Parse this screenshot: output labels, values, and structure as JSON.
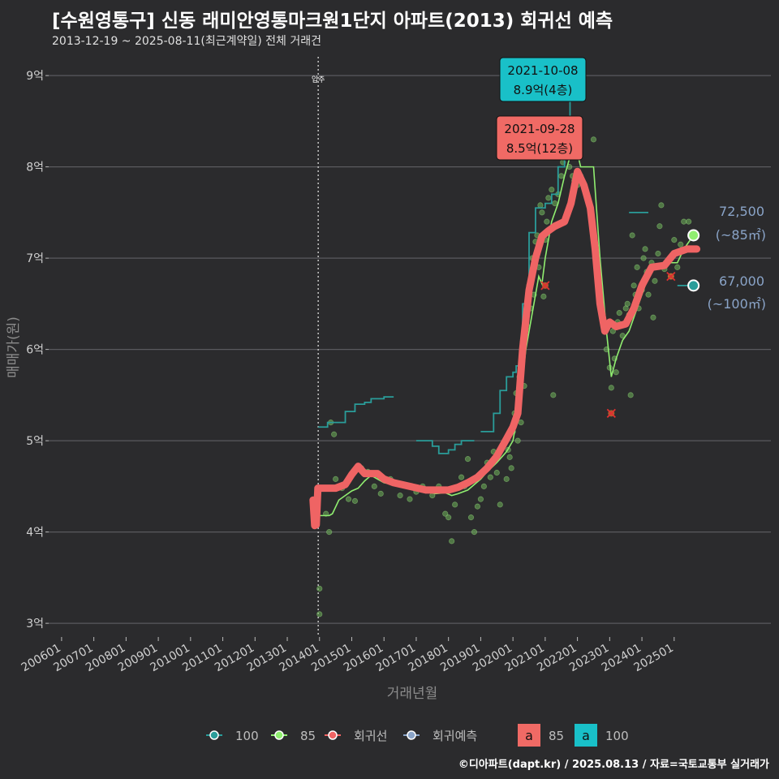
{
  "header": {
    "title": "[수원영통구] 신동 래미안영통마크원1단지 아파트(2013) 회귀선 예측",
    "subtitle": "2013-12-19 ~ 2025-08-11(최근계약일) 전체 거래건"
  },
  "footer": {
    "credit": "©디아파트(dapt.kr) / 2025.08.13 / 자료=국토교통부 실거래가"
  },
  "colors": {
    "bg": "#2b2b2d",
    "grid": "#5a5a5e",
    "axis_text": "#cfcfcf",
    "axis_title": "#8c8c8c",
    "s100": "#2a9d9a",
    "s85": "#90ee70",
    "regression": "#ef6464",
    "forecast": "#8aa4c8",
    "label85_bg": "#f06a65",
    "label100_bg": "#19c0c8"
  },
  "chart_data": {
    "type": "line",
    "xlabel": "거래년월",
    "ylabel": "매매가(원)",
    "x_ticks": [
      "200601",
      "200701",
      "200801",
      "200901",
      "201001",
      "201101",
      "201201",
      "201301",
      "201401",
      "201501",
      "201601",
      "201701",
      "201801",
      "201901",
      "202001",
      "202101",
      "202201",
      "202301",
      "202401",
      "202501"
    ],
    "y_ticks": [
      "3억",
      "4억",
      "5억",
      "6억",
      "7억",
      "8억",
      "9억"
    ],
    "xlim": [
      2005.6,
      2028.0
    ],
    "ylim": [
      28500,
      92500
    ],
    "move_in": {
      "x": 2013.96,
      "label": "입주"
    },
    "series": [
      {
        "name": "100",
        "kind": "step",
        "points": [
          [
            2013.96,
            51500
          ],
          [
            2014.25,
            52000
          ],
          [
            2014.6,
            52000
          ],
          [
            2014.8,
            53200
          ],
          [
            2015.0,
            53200
          ],
          [
            2015.1,
            54000
          ],
          [
            2015.4,
            54200
          ],
          [
            2015.6,
            54600
          ],
          [
            2016.0,
            54800
          ],
          [
            2016.3,
            54800
          ]
        ]
      },
      {
        "name": "100b",
        "kind": "step",
        "points": [
          [
            2017.0,
            50000
          ],
          [
            2017.4,
            50000
          ],
          [
            2017.5,
            49400
          ],
          [
            2017.7,
            48600
          ],
          [
            2018.0,
            49000
          ],
          [
            2018.2,
            49600
          ],
          [
            2018.4,
            50000
          ],
          [
            2018.8,
            50000
          ]
        ]
      },
      {
        "name": "100c",
        "kind": "step",
        "points": [
          [
            2019.0,
            51000
          ],
          [
            2019.3,
            51000
          ],
          [
            2019.4,
            53000
          ],
          [
            2019.6,
            55500
          ],
          [
            2019.8,
            57000
          ],
          [
            2020.0,
            57500
          ],
          [
            2020.1,
            58200
          ],
          [
            2020.3,
            65000
          ],
          [
            2020.5,
            72800
          ],
          [
            2020.7,
            75500
          ],
          [
            2021.0,
            76000
          ],
          [
            2021.2,
            77000
          ],
          [
            2021.4,
            80000
          ],
          [
            2021.6,
            81500
          ],
          [
            2021.77,
            89000
          ],
          [
            2022.1,
            89000
          ]
        ]
      },
      {
        "name": "100d",
        "kind": "step",
        "points": [
          [
            2023.6,
            75000
          ],
          [
            2024.2,
            75000
          ]
        ]
      },
      {
        "name": "100e",
        "kind": "step",
        "points": [
          [
            2025.1,
            67000
          ],
          [
            2025.55,
            67000
          ]
        ]
      },
      {
        "name": "85",
        "kind": "line",
        "points": [
          [
            2014.0,
            41800
          ],
          [
            2014.3,
            41800
          ],
          [
            2014.4,
            42000
          ],
          [
            2014.6,
            43500
          ],
          [
            2014.8,
            44000
          ],
          [
            2015.0,
            44500
          ],
          [
            2015.2,
            44800
          ],
          [
            2015.4,
            45600
          ],
          [
            2015.6,
            46200
          ],
          [
            2015.8,
            45800
          ],
          [
            2016.0,
            45400
          ],
          [
            2016.3,
            45200
          ],
          [
            2016.6,
            45000
          ],
          [
            2017.0,
            44600
          ],
          [
            2017.3,
            44400
          ],
          [
            2017.6,
            44200
          ],
          [
            2017.9,
            44300
          ],
          [
            2018.1,
            44000
          ],
          [
            2018.3,
            44200
          ],
          [
            2018.6,
            44600
          ],
          [
            2018.8,
            45200
          ],
          [
            2019.0,
            45800
          ],
          [
            2019.2,
            46600
          ],
          [
            2019.5,
            47600
          ],
          [
            2019.8,
            48800
          ],
          [
            2020.0,
            50000
          ],
          [
            2020.2,
            54000
          ],
          [
            2020.4,
            60000
          ],
          [
            2020.6,
            64000
          ],
          [
            2020.8,
            68000
          ],
          [
            2020.9,
            67200
          ],
          [
            2021.0,
            70000
          ],
          [
            2021.2,
            74000
          ],
          [
            2021.4,
            76000
          ],
          [
            2021.6,
            79000
          ],
          [
            2021.8,
            81500
          ],
          [
            2022.0,
            81500
          ],
          [
            2022.1,
            80000
          ],
          [
            2022.5,
            80000
          ],
          [
            2022.7,
            70000
          ],
          [
            2022.9,
            62000
          ],
          [
            2023.05,
            57000
          ],
          [
            2023.2,
            59000
          ],
          [
            2023.4,
            61000
          ],
          [
            2023.6,
            62000
          ],
          [
            2023.8,
            64000
          ],
          [
            2024.0,
            66000
          ],
          [
            2024.1,
            67000
          ],
          [
            2024.3,
            69000
          ],
          [
            2024.6,
            69000
          ],
          [
            2024.9,
            69500
          ],
          [
            2025.1,
            69500
          ],
          [
            2025.3,
            71000
          ],
          [
            2025.6,
            72500
          ]
        ]
      },
      {
        "name": "회귀선",
        "kind": "regression",
        "points": [
          [
            2013.8,
            43500
          ],
          [
            2013.85,
            40700
          ],
          [
            2013.9,
            40800
          ],
          [
            2013.95,
            44800
          ],
          [
            2014.2,
            44800
          ],
          [
            2014.5,
            44800
          ],
          [
            2014.8,
            45200
          ],
          [
            2015.0,
            46300
          ],
          [
            2015.2,
            47200
          ],
          [
            2015.4,
            46400
          ],
          [
            2015.8,
            46400
          ],
          [
            2016.0,
            45800
          ],
          [
            2016.3,
            45400
          ],
          [
            2016.8,
            45000
          ],
          [
            2017.3,
            44600
          ],
          [
            2017.8,
            44600
          ],
          [
            2018.0,
            44600
          ],
          [
            2018.3,
            44900
          ],
          [
            2018.6,
            45400
          ],
          [
            2018.9,
            46000
          ],
          [
            2019.2,
            47000
          ],
          [
            2019.5,
            48300
          ],
          [
            2019.8,
            50200
          ],
          [
            2020.0,
            51500
          ],
          [
            2020.15,
            53000
          ],
          [
            2020.3,
            60000
          ],
          [
            2020.5,
            66500
          ],
          [
            2020.7,
            70000
          ],
          [
            2020.9,
            72400
          ],
          [
            2021.1,
            73000
          ],
          [
            2021.3,
            73500
          ],
          [
            2021.6,
            74000
          ],
          [
            2021.8,
            76000
          ],
          [
            2022.0,
            79500
          ],
          [
            2022.2,
            78000
          ],
          [
            2022.4,
            75500
          ],
          [
            2022.55,
            71000
          ],
          [
            2022.7,
            65000
          ],
          [
            2022.85,
            62000
          ],
          [
            2023.0,
            63000
          ],
          [
            2023.2,
            62500
          ],
          [
            2023.5,
            62800
          ],
          [
            2023.75,
            64500
          ],
          [
            2024.0,
            67000
          ],
          [
            2024.3,
            69000
          ],
          [
            2024.7,
            69200
          ],
          [
            2025.0,
            70500
          ],
          [
            2025.4,
            71000
          ],
          [
            2025.7,
            71000
          ]
        ]
      }
    ],
    "scatter": [
      [
        2014.0,
        33800
      ],
      [
        2014.0,
        31000
      ],
      [
        2014.2,
        42000
      ],
      [
        2014.3,
        40000
      ],
      [
        2014.35,
        52000
      ],
      [
        2014.45,
        50700
      ],
      [
        2014.5,
        45800
      ],
      [
        2014.7,
        44800
      ],
      [
        2014.9,
        43600
      ],
      [
        2015.1,
        43400
      ],
      [
        2015.3,
        47000
      ],
      [
        2015.5,
        46600
      ],
      [
        2015.7,
        45000
      ],
      [
        2015.9,
        44200
      ],
      [
        2016.2,
        45800
      ],
      [
        2016.5,
        44000
      ],
      [
        2016.8,
        43600
      ],
      [
        2017.0,
        44400
      ],
      [
        2017.2,
        45000
      ],
      [
        2017.5,
        44000
      ],
      [
        2017.7,
        45000
      ],
      [
        2017.9,
        42000
      ],
      [
        2018.0,
        41600
      ],
      [
        2018.1,
        39000
      ],
      [
        2018.2,
        43000
      ],
      [
        2018.4,
        46000
      ],
      [
        2018.5,
        45000
      ],
      [
        2018.6,
        48000
      ],
      [
        2018.7,
        41600
      ],
      [
        2018.8,
        40000
      ],
      [
        2018.9,
        42800
      ],
      [
        2019.0,
        43600
      ],
      [
        2019.1,
        45000
      ],
      [
        2019.2,
        47600
      ],
      [
        2019.3,
        46000
      ],
      [
        2019.4,
        48800
      ],
      [
        2019.5,
        46500
      ],
      [
        2019.6,
        43000
      ],
      [
        2019.7,
        49600
      ],
      [
        2019.8,
        45800
      ],
      [
        2019.85,
        49000
      ],
      [
        2019.9,
        48200
      ],
      [
        2019.95,
        47000
      ],
      [
        2020.0,
        51000
      ],
      [
        2020.05,
        53000
      ],
      [
        2020.1,
        55200
      ],
      [
        2020.15,
        50000
      ],
      [
        2020.2,
        57000
      ],
      [
        2020.25,
        52000
      ],
      [
        2020.3,
        60800
      ],
      [
        2020.35,
        56000
      ],
      [
        2020.4,
        63000
      ],
      [
        2020.45,
        62500
      ],
      [
        2020.5,
        67000
      ],
      [
        2020.55,
        64500
      ],
      [
        2020.6,
        70000
      ],
      [
        2020.65,
        66000
      ],
      [
        2020.7,
        71800
      ],
      [
        2020.75,
        72500
      ],
      [
        2020.8,
        69000
      ],
      [
        2020.85,
        75800
      ],
      [
        2020.9,
        75000
      ],
      [
        2020.95,
        65800
      ],
      [
        2021.0,
        72000
      ],
      [
        2021.05,
        74000
      ],
      [
        2021.1,
        76600
      ],
      [
        2021.2,
        77500
      ],
      [
        2021.25,
        55000
      ],
      [
        2021.3,
        76000
      ],
      [
        2021.4,
        77000
      ],
      [
        2021.5,
        79000
      ],
      [
        2021.55,
        80500
      ],
      [
        2021.6,
        82500
      ],
      [
        2021.65,
        84000
      ],
      [
        2021.7,
        85000
      ],
      [
        2021.75,
        80000
      ],
      [
        2021.8,
        82000
      ],
      [
        2021.85,
        79000
      ],
      [
        2021.9,
        78500
      ],
      [
        2022.0,
        78000
      ],
      [
        2022.1,
        79000
      ],
      [
        2022.5,
        83000
      ],
      [
        2022.9,
        60000
      ],
      [
        2023.0,
        58000
      ],
      [
        2023.05,
        55800
      ],
      [
        2023.1,
        62000
      ],
      [
        2023.15,
        59000
      ],
      [
        2023.2,
        57500
      ],
      [
        2023.25,
        63000
      ],
      [
        2023.3,
        64000
      ],
      [
        2023.4,
        61500
      ],
      [
        2023.5,
        64500
      ],
      [
        2023.55,
        65000
      ],
      [
        2023.6,
        63800
      ],
      [
        2023.65,
        55000
      ],
      [
        2023.7,
        72500
      ],
      [
        2023.75,
        67000
      ],
      [
        2023.8,
        66000
      ],
      [
        2023.85,
        69000
      ],
      [
        2023.9,
        64500
      ],
      [
        2024.0,
        66500
      ],
      [
        2024.05,
        70000
      ],
      [
        2024.1,
        71000
      ],
      [
        2024.15,
        68500
      ],
      [
        2024.2,
        66000
      ],
      [
        2024.3,
        69500
      ],
      [
        2024.35,
        63500
      ],
      [
        2024.4,
        67500
      ],
      [
        2024.5,
        70500
      ],
      [
        2024.55,
        73500
      ],
      [
        2024.6,
        75800
      ],
      [
        2024.7,
        68800
      ],
      [
        2024.8,
        69500
      ],
      [
        2024.9,
        68000
      ],
      [
        2025.0,
        72000
      ],
      [
        2025.1,
        69000
      ],
      [
        2025.2,
        71500
      ],
      [
        2025.3,
        74000
      ],
      [
        2025.45,
        74000
      ],
      [
        2025.55,
        72500
      ]
    ],
    "outliers": [
      [
        2021.0,
        67000
      ],
      [
        2023.05,
        53000
      ],
      [
        2024.9,
        68000
      ]
    ],
    "endpoints": [
      {
        "series": "85",
        "x": 2025.6,
        "y": 72500,
        "label_value": "72,500",
        "label_area": "(~85㎡)"
      },
      {
        "series": "100",
        "x": 2025.6,
        "y": 67000,
        "label_value": "67,000",
        "label_area": "(~100㎡)"
      }
    ],
    "callouts": [
      {
        "series": "100",
        "x": 2021.75,
        "y": 89000,
        "date": "2021-10-08",
        "price": "8.9억(4층)"
      },
      {
        "series": "85",
        "x": 2021.74,
        "y": 85000,
        "date": "2021-09-28",
        "price": "8.5억(12층)"
      }
    ],
    "legend": {
      "items": [
        {
          "key": "100",
          "label": "100"
        },
        {
          "key": "85",
          "label": "85"
        },
        {
          "key": "reg",
          "label": "회귀선"
        },
        {
          "key": "fc",
          "label": "회귀예측"
        }
      ],
      "fill_items": [
        {
          "glyph": "a",
          "label": "85"
        },
        {
          "glyph": "a",
          "label": "100"
        }
      ]
    }
  }
}
